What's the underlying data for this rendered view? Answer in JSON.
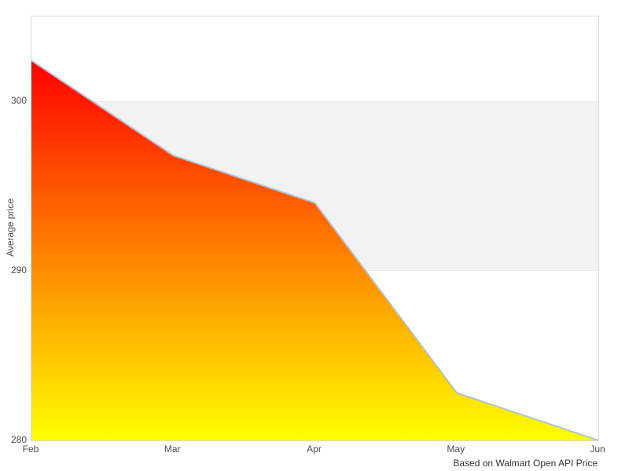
{
  "chart_data": {
    "type": "area",
    "x": [
      "Feb",
      "Mar",
      "Apr",
      "May",
      "Jun"
    ],
    "values": [
      302.4,
      296.8,
      294.0,
      282.8,
      280.0
    ],
    "series_name": "Average price",
    "title": "",
    "xlabel": "",
    "ylabel": "Average price",
    "yticks": [
      280,
      290,
      300
    ],
    "ylim": [
      280,
      305
    ],
    "plot_band": [
      290,
      300
    ],
    "grid": "horizontal-band",
    "legend": "none",
    "caption": "Based on Walmart Open API Price",
    "colors": {
      "area_gradient_top": "#ff0000",
      "area_gradient_bottom": "#ffff00",
      "line": "#a5c3de",
      "band": "#f2f2f2",
      "gridline": "#e7e7e7",
      "plot_border": "#d9d9d9",
      "tick_text": "#4d4d4d",
      "caption_text": "#333333",
      "background": "#ffffff"
    }
  }
}
